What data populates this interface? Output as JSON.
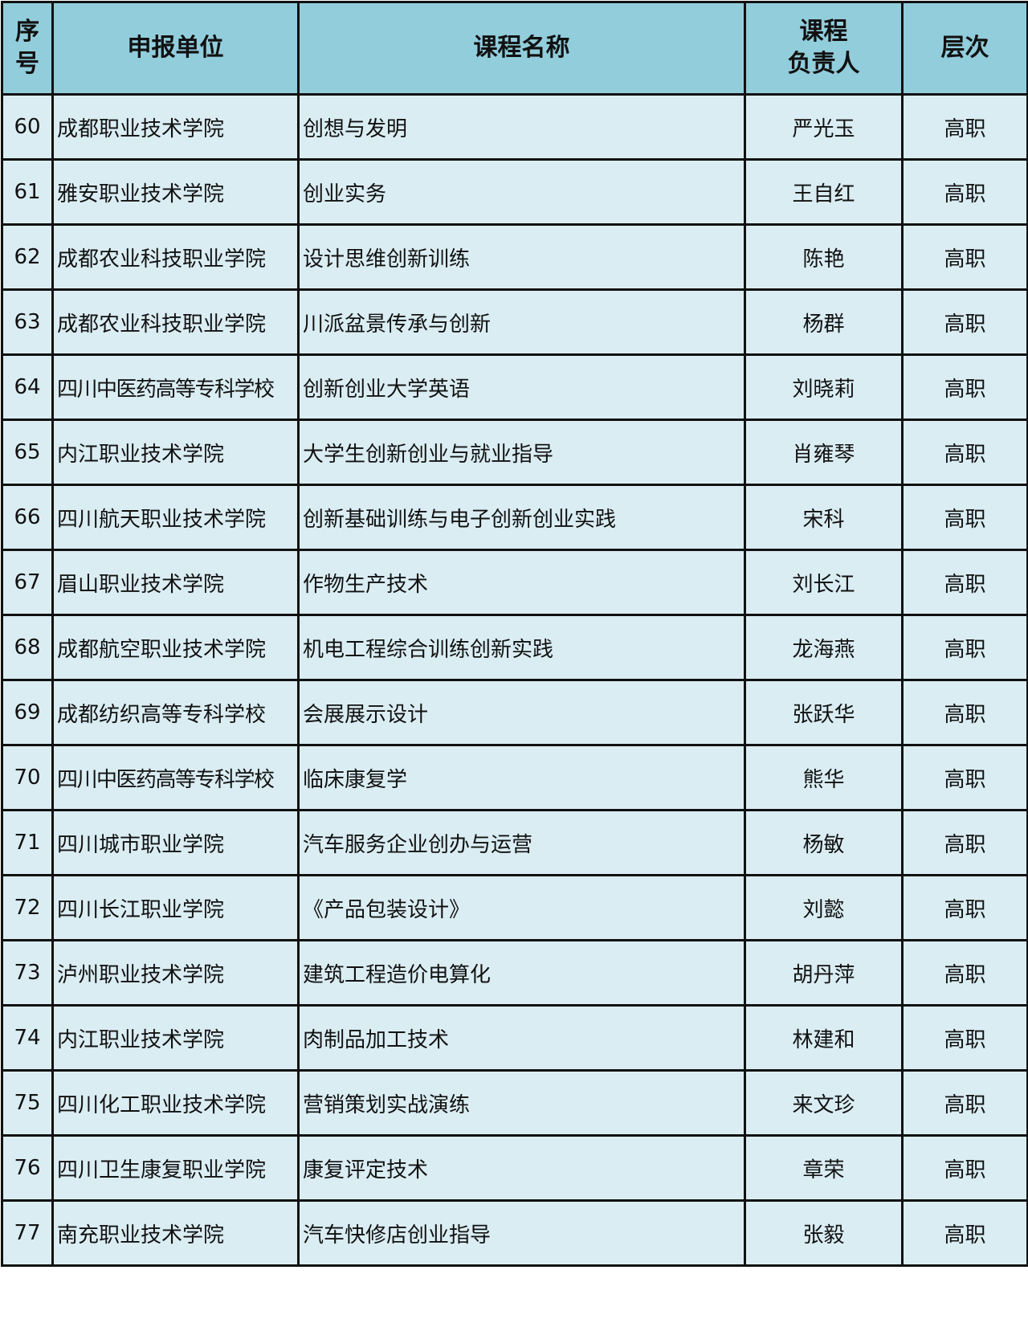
{
  "colors": {
    "header_bg": "#92cddc",
    "row_bg": "#daedf3",
    "border": "#111111"
  },
  "headers": {
    "seq_line1": "序",
    "seq_line2": "号",
    "unit": "申报单位",
    "course": "课程名称",
    "lead_line1": "课程",
    "lead_line2": "负责人",
    "level": "层次"
  },
  "rows": [
    {
      "no": "60",
      "unit": "成都职业技术学院",
      "course": "创想与发明",
      "lead": "严光玉",
      "level": "高职"
    },
    {
      "no": "61",
      "unit": "雅安职业技术学院",
      "course": "创业实务",
      "lead": "王自红",
      "level": "高职"
    },
    {
      "no": "62",
      "unit": "成都农业科技职业学院",
      "course": "设计思维创新训练",
      "lead": "陈艳",
      "level": "高职"
    },
    {
      "no": "63",
      "unit": "成都农业科技职业学院",
      "course": "川派盆景传承与创新",
      "lead": "杨群",
      "level": "高职"
    },
    {
      "no": "64",
      "unit": "四川中医药高等专科学校",
      "course": "创新创业大学英语",
      "lead": "刘晓莉",
      "level": "高职"
    },
    {
      "no": "65",
      "unit": "内江职业技术学院",
      "course": "大学生创新创业与就业指导",
      "lead": "肖雍琴",
      "level": "高职"
    },
    {
      "no": "66",
      "unit": "四川航天职业技术学院",
      "course": "创新基础训练与电子创新创业实践",
      "lead": "宋科",
      "level": "高职"
    },
    {
      "no": "67",
      "unit": "眉山职业技术学院",
      "course": "作物生产技术",
      "lead": "刘长江",
      "level": "高职"
    },
    {
      "no": "68",
      "unit": "成都航空职业技术学院",
      "course": "机电工程综合训练创新实践",
      "lead": "龙海燕",
      "level": "高职"
    },
    {
      "no": "69",
      "unit": "成都纺织高等专科学校",
      "course": "会展展示设计",
      "lead": "张跃华",
      "level": "高职"
    },
    {
      "no": "70",
      "unit": "四川中医药高等专科学校",
      "course": "临床康复学",
      "lead": "熊华",
      "level": "高职"
    },
    {
      "no": "71",
      "unit": "四川城市职业学院",
      "course": "汽车服务企业创办与运营",
      "lead": "杨敏",
      "level": "高职"
    },
    {
      "no": "72",
      "unit": "四川长江职业学院",
      "course": "《产品包装设计》",
      "lead": "刘懿",
      "level": "高职"
    },
    {
      "no": "73",
      "unit": "泸州职业技术学院",
      "course": "建筑工程造价电算化",
      "lead": "胡丹萍",
      "level": "高职"
    },
    {
      "no": "74",
      "unit": "内江职业技术学院",
      "course": "肉制品加工技术",
      "lead": "林建和",
      "level": "高职"
    },
    {
      "no": "75",
      "unit": "四川化工职业技术学院",
      "course": "营销策划实战演练",
      "lead": "来文珍",
      "level": "高职"
    },
    {
      "no": "76",
      "unit": "四川卫生康复职业学院",
      "course": "康复评定技术",
      "lead": "章荣",
      "level": "高职"
    },
    {
      "no": "77",
      "unit": "南充职业技术学院",
      "course": "汽车快修店创业指导",
      "lead": "张毅",
      "level": "高职"
    }
  ]
}
